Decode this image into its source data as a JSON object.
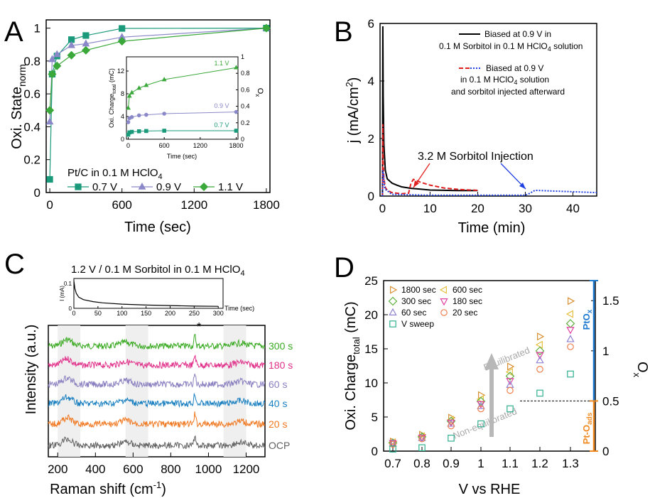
{
  "figure": {
    "panels": [
      "A",
      "B",
      "C",
      "D"
    ]
  },
  "chart_data": [
    {
      "id": "A",
      "type": "line",
      "panel_label": "A",
      "xlabel": "Time (sec)",
      "ylabel_main": "Oxi. State",
      "ylabel_sub": "norm",
      "xlim": [
        -30,
        1830
      ],
      "ylim": [
        0,
        1.05
      ],
      "xticks": [
        0,
        600,
        1200,
        1800
      ],
      "yticks": [
        0,
        0.2,
        0.4,
        0.6,
        0.8,
        1
      ],
      "ytick_labels": [
        "0",
        "0.2",
        "0.4",
        "0.6",
        "0.8",
        "1"
      ],
      "legend_title": "Pt/C in 0.1 M HClO",
      "legend_title_sub": "4",
      "series": [
        {
          "name": "0.7 V",
          "color": "#1a9a7a",
          "marker": "square",
          "x": [
            0,
            20,
            60,
            180,
            300,
            600,
            1800
          ],
          "y": [
            0.08,
            0.72,
            0.83,
            0.93,
            0.955,
            0.998,
            1.0
          ]
        },
        {
          "name": "0.9 V",
          "color": "#8a88c8",
          "marker": "triangle",
          "x": [
            0,
            20,
            60,
            180,
            300,
            600,
            1800
          ],
          "y": [
            0.43,
            0.81,
            0.84,
            0.895,
            0.905,
            0.945,
            1.0
          ]
        },
        {
          "name": "1.1 V",
          "color": "#3aa83a",
          "marker": "diamond",
          "x": [
            0,
            20,
            60,
            180,
            300,
            600,
            1800
          ],
          "y": [
            0.5,
            0.72,
            0.77,
            0.835,
            0.865,
            0.92,
            1.0
          ]
        }
      ],
      "inset": {
        "xlabel": "Time (sec)",
        "ylabel_left_main": "Oxi. Charge",
        "ylabel_left_sub": "total",
        "ylabel_left_unit": " (mC)",
        "ylabel_right": "O",
        "ylabel_right_sub": "x",
        "xlim": [
          -30,
          1830
        ],
        "ylim_left": [
          0,
          14.5
        ],
        "ylim_right": [
          0,
          1.0
        ],
        "xticks": [
          0,
          600,
          1200,
          1800
        ],
        "yticks_left": [
          0,
          4,
          8,
          12
        ],
        "yticks_right": [
          0,
          0.2,
          0.4,
          0.6,
          0.8,
          1
        ],
        "ytick_right_labels": [
          "0",
          "0.2",
          "0.4",
          "0.6",
          "0.8",
          "1"
        ],
        "series": [
          {
            "name": "1.1 V",
            "color": "#3aa83a",
            "x": [
              0,
              20,
              60,
              180,
              300,
              600,
              1800
            ],
            "y": [
              5.5,
              7.6,
              8.2,
              9.0,
              9.5,
              10.5,
              12.6
            ]
          },
          {
            "name": "0.9 V",
            "color": "#8a88c8",
            "x": [
              0,
              20,
              60,
              180,
              300,
              600,
              1800
            ],
            "y": [
              3.0,
              3.7,
              3.9,
              4.2,
              4.3,
              4.5,
              4.8
            ]
          },
          {
            "name": "0.7 V",
            "color": "#1a9a7a",
            "x": [
              0,
              20,
              60,
              180,
              300,
              600,
              1800
            ],
            "y": [
              0.8,
              1.2,
              1.3,
              1.4,
              1.45,
              1.5,
              1.5
            ]
          }
        ]
      }
    },
    {
      "id": "B",
      "type": "line",
      "panel_label": "B",
      "xlabel": "Time (min)",
      "ylabel": "j (mA/cm",
      "ylabel_sup": "2",
      "xlim": [
        -0.5,
        45
      ],
      "ylim": [
        0,
        6
      ],
      "xticks": [
        0,
        10,
        20,
        30,
        40
      ],
      "yticks": [
        0,
        2,
        4,
        6
      ],
      "legend": [
        {
          "line1": "Biased at 0.9 V in",
          "line2": "0.1 M Sorbitol in 0.1 M HClO",
          "line2_sub": "4",
          "line2_tail": " solution"
        },
        {
          "line1": "Biased at 0.9 V",
          "line2": "in 0.1 M HClO",
          "line2_sub": "4",
          "line2_tail": " solution",
          "line3": "and sorbitol injected afterward"
        }
      ],
      "annotation": "3.2 M Sorbitol Injection",
      "series": [
        {
          "name": "black",
          "color": "#000000",
          "style": "solid",
          "x": [
            0,
            0.08,
            0.15,
            0.3,
            0.6,
            1,
            2,
            3,
            4,
            6,
            8,
            10,
            13,
            16,
            20
          ],
          "y": [
            0,
            5.9,
            3.5,
            1.8,
            0.9,
            0.6,
            0.45,
            0.38,
            0.32,
            0.27,
            0.24,
            0.21,
            0.2,
            0.19,
            0.19
          ]
        },
        {
          "name": "red",
          "color": "#e02020",
          "style": "dash",
          "x": [
            0,
            0.08,
            0.15,
            0.3,
            0.6,
            1,
            2,
            4,
            5.5,
            6,
            6.5,
            7,
            8,
            10,
            13,
            16,
            20
          ],
          "y": [
            0,
            2.5,
            1.2,
            0.6,
            0.3,
            0.2,
            0.12,
            0.08,
            0.1,
            0.45,
            0.58,
            0.55,
            0.48,
            0.38,
            0.28,
            0.23,
            0.2
          ]
        },
        {
          "name": "blue",
          "color": "#2040e0",
          "style": "dot",
          "x": [
            0,
            0.1,
            0.5,
            2,
            10,
            20,
            30,
            31,
            32,
            35,
            40,
            45
          ],
          "y": [
            0,
            0.9,
            0.25,
            0.06,
            0.03,
            0.03,
            0.03,
            0.1,
            0.2,
            0.18,
            0.15,
            0.12
          ]
        }
      ]
    },
    {
      "id": "C",
      "type": "line",
      "panel_label": "C",
      "xlabel": "Raman shift (cm",
      "xlabel_sup": "-1",
      "xlabel_tail": ")",
      "ylabel": "Intensity (a.u.)",
      "title": "1.2 V / 0.1 M Sorbitol in 0.1 M HClO",
      "title_sub": "4",
      "xlim": [
        150,
        1300
      ],
      "xticks": [
        200,
        400,
        600,
        800,
        1000,
        1200
      ],
      "star": "*",
      "spectra": [
        {
          "name": "300 s",
          "color": "#3aaa22"
        },
        {
          "name": "180 s",
          "color": "#e0308a"
        },
        {
          "name": "60 s",
          "color": "#8a80c0"
        },
        {
          "name": "40 s",
          "color": "#1a80c0"
        },
        {
          "name": "20 s",
          "color": "#f07820"
        },
        {
          "name": "OCP",
          "color": "#606060"
        }
      ],
      "inset": {
        "ylabel": "I (mA)",
        "xlabel": "Time (sec)",
        "xticks": [
          0,
          50,
          100,
          150,
          200,
          250,
          300
        ],
        "yticks": [
          0,
          0.1
        ],
        "xlim": [
          0,
          310
        ],
        "ylim": [
          0,
          0.12
        ],
        "x": [
          0,
          2,
          5,
          10,
          20,
          40,
          60,
          100,
          150,
          200,
          250,
          300
        ],
        "y": [
          0.11,
          0.08,
          0.06,
          0.045,
          0.035,
          0.027,
          0.022,
          0.017,
          0.013,
          0.011,
          0.009,
          0.008
        ]
      }
    },
    {
      "id": "D",
      "type": "scatter",
      "panel_label": "D",
      "xlabel": "V vs RHE",
      "ylabel_main": "Oxi. Charge",
      "ylabel_sub": "total",
      "ylabel_unit": " (mC)",
      "ylabel_right": "O",
      "ylabel_right_sub": "x",
      "categories": [
        "0.7",
        "0.8",
        "0.9",
        "1",
        "1.1",
        "1.2",
        "1.3"
      ],
      "ylim": [
        0,
        25
      ],
      "ylim_right": [
        0,
        1.7
      ],
      "yticks": [
        0,
        5,
        10,
        15,
        20,
        25
      ],
      "yticks_right": [
        0,
        0.5,
        1,
        1.5
      ],
      "ytick_right_labels": [
        "0",
        "0.5",
        "1",
        "1.5"
      ],
      "annotations": {
        "top": "Equilibrated",
        "bottom": "Non-equilibrated",
        "ptox": "PtO",
        "ptox_sub": "x",
        "ptoads": "Pt-O",
        "ptoads_sub": "ads"
      },
      "threshold_oxide": 0.5,
      "series": [
        {
          "name": "1800 sec",
          "color": "#d89030",
          "marker": "tri-right",
          "values": [
            1.4,
            2.4,
            4.9,
            8.2,
            12.4,
            16.8,
            22.0
          ]
        },
        {
          "name": "600 sec",
          "color": "#e8c040",
          "marker": "tri-left",
          "values": [
            1.3,
            2.2,
            4.6,
            7.6,
            11.6,
            15.6,
            20.1
          ]
        },
        {
          "name": "300 sec",
          "color": "#60b040",
          "marker": "diamond",
          "values": [
            1.2,
            2.1,
            4.4,
            7.3,
            11.0,
            14.7,
            18.7
          ]
        },
        {
          "name": "180 sec",
          "color": "#e040a0",
          "marker": "tri-down",
          "values": [
            1.2,
            2.0,
            4.2,
            6.9,
            10.3,
            14.1,
            17.8
          ]
        },
        {
          "name": "60 sec",
          "color": "#9080d0",
          "marker": "triangle",
          "values": [
            1.1,
            1.9,
            4.0,
            6.6,
            9.7,
            13.3,
            16.4
          ]
        },
        {
          "name": "20 sec",
          "color": "#f08050",
          "marker": "circle",
          "values": [
            1.0,
            1.8,
            3.7,
            6.2,
            8.9,
            12.0,
            15.3
          ]
        },
        {
          "name": "V sweep",
          "color": "#30b090",
          "marker": "square",
          "values": [
            0.3,
            0.5,
            1.9,
            4.0,
            6.2,
            8.5,
            11.3
          ]
        }
      ]
    }
  ]
}
